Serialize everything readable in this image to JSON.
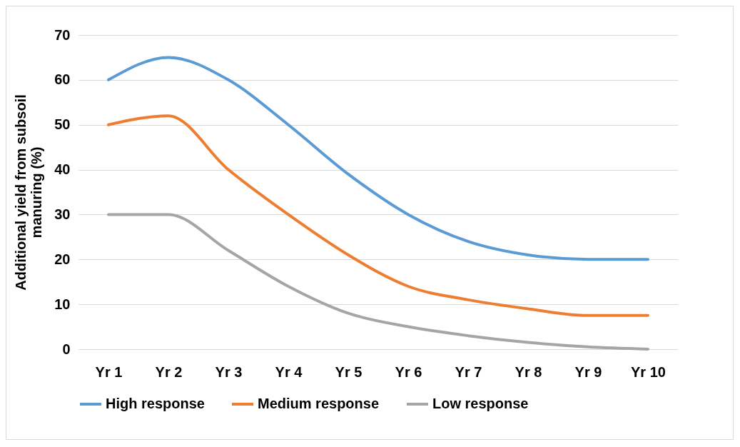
{
  "chart_data": {
    "type": "line",
    "ylabel": "Additional yield from subsoil manuring (%)",
    "categories": [
      "Yr 1",
      "Yr 2",
      "Yr 3",
      "Yr 4",
      "Yr 5",
      "Yr 6",
      "Yr 7",
      "Yr 8",
      "Yr 9",
      "Yr 10"
    ],
    "series": [
      {
        "name": "High response",
        "color": "#5b9bd5",
        "values": [
          60,
          65,
          60,
          50,
          39,
          30,
          24,
          21,
          20,
          20
        ]
      },
      {
        "name": "Medium response",
        "color": "#ed7d31",
        "values": [
          50,
          52,
          40,
          30,
          21,
          14,
          11,
          9,
          7.5,
          7.5
        ]
      },
      {
        "name": "Low response",
        "color": "#a5a5a5",
        "values": [
          30,
          30,
          22,
          14,
          8,
          5,
          3,
          1.5,
          0.5,
          0
        ]
      }
    ],
    "ylim": [
      0,
      70
    ],
    "yticks": [
      0,
      10,
      20,
      30,
      40,
      50,
      60,
      70
    ],
    "grid": "y",
    "legend": "bottom",
    "marker": "none",
    "line_style": "solid"
  }
}
